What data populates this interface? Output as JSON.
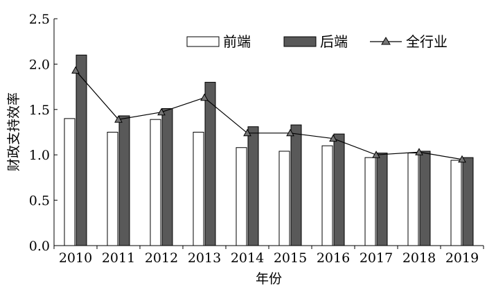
{
  "chart_data": {
    "type": "bar",
    "categories": [
      "2010",
      "2011",
      "2012",
      "2013",
      "2014",
      "2015",
      "2016",
      "2017",
      "2018",
      "2019"
    ],
    "series": [
      {
        "name": "前端",
        "kind": "bar",
        "color": "#ffffff",
        "values": [
          1.4,
          1.25,
          1.39,
          1.25,
          1.08,
          1.04,
          1.1,
          0.97,
          1.02,
          0.94
        ]
      },
      {
        "name": "后端",
        "kind": "bar",
        "color": "#595959",
        "values": [
          2.1,
          1.43,
          1.51,
          1.8,
          1.31,
          1.33,
          1.23,
          1.02,
          1.04,
          0.97
        ]
      },
      {
        "name": "全行业",
        "kind": "line",
        "color": "#000000",
        "values": [
          1.93,
          1.39,
          1.47,
          1.63,
          1.24,
          1.24,
          1.18,
          1.0,
          1.03,
          0.95
        ]
      }
    ],
    "ylim": [
      0,
      2.5
    ],
    "yticks": [
      "0.0",
      "0.5",
      "1.0",
      "1.5",
      "2.0",
      "2.5"
    ],
    "xlabel": "年份",
    "ylabel": "财政支持效率",
    "legend": "top-right",
    "grid": false
  }
}
